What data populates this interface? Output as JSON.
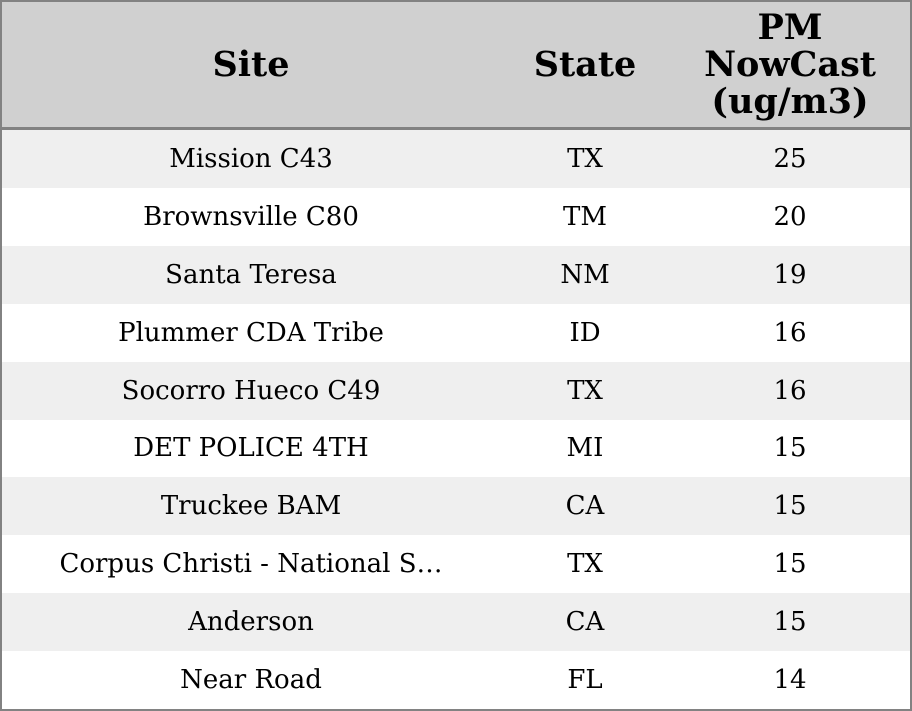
{
  "colors": {
    "header_bg": "#d0d0d0",
    "row_stripe_bg": "#efefef",
    "row_bg": "#ffffff",
    "border": "#828282",
    "text": "#000000"
  },
  "table": {
    "headers": [
      "Site",
      "State",
      "PM NowCast (ug/m3)"
    ],
    "rows": [
      {
        "site": "Mission C43",
        "state": "TX",
        "pm_nowcast": "25"
      },
      {
        "site": "Brownsville C80",
        "state": "TM",
        "pm_nowcast": "20"
      },
      {
        "site": "Santa Teresa",
        "state": "NM",
        "pm_nowcast": "19"
      },
      {
        "site": "Plummer CDA Tribe",
        "state": "ID",
        "pm_nowcast": "16"
      },
      {
        "site": "Socorro Hueco C49",
        "state": "TX",
        "pm_nowcast": "16"
      },
      {
        "site": "DET POLICE 4TH",
        "state": "MI",
        "pm_nowcast": "15"
      },
      {
        "site": "Truckee BAM",
        "state": "CA",
        "pm_nowcast": "15"
      },
      {
        "site": "Corpus Christi - National S…",
        "state": "TX",
        "pm_nowcast": "15"
      },
      {
        "site": "Anderson",
        "state": "CA",
        "pm_nowcast": "15"
      },
      {
        "site": "Near Road",
        "state": "FL",
        "pm_nowcast": "14"
      }
    ]
  }
}
